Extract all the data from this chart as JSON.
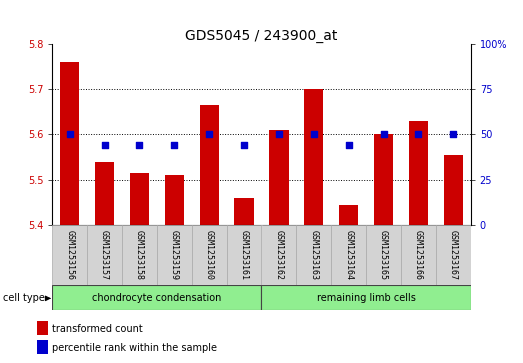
{
  "title": "GDS5045 / 243900_at",
  "categories": [
    "GSM1253156",
    "GSM1253157",
    "GSM1253158",
    "GSM1253159",
    "GSM1253160",
    "GSM1253161",
    "GSM1253162",
    "GSM1253163",
    "GSM1253164",
    "GSM1253165",
    "GSM1253166",
    "GSM1253167"
  ],
  "bar_values": [
    5.76,
    5.54,
    5.515,
    5.51,
    5.665,
    5.46,
    5.61,
    5.7,
    5.445,
    5.6,
    5.63,
    5.555
  ],
  "bar_base": 5.4,
  "percentile_values": [
    50,
    44,
    44,
    44,
    50,
    44,
    50,
    50,
    44,
    50,
    50,
    50
  ],
  "bar_color": "#cc0000",
  "dot_color": "#0000cc",
  "ylim_left": [
    5.4,
    5.8
  ],
  "ylim_right": [
    0,
    100
  ],
  "yticks_left": [
    5.4,
    5.5,
    5.6,
    5.7,
    5.8
  ],
  "yticks_right": [
    0,
    25,
    50,
    75,
    100
  ],
  "ytick_labels_right": [
    "0",
    "25",
    "50",
    "75",
    "100%"
  ],
  "group1_label": "chondrocyte condensation",
  "group2_label": "remaining limb cells",
  "group1_count": 6,
  "group2_count": 6,
  "cell_type_label": "cell type",
  "legend1": "transformed count",
  "legend2": "percentile rank within the sample",
  "background_color": "#ffffff",
  "plot_bg": "#ffffff",
  "tick_area_bg": "#d3d3d3",
  "group1_bg": "#90ee90",
  "group2_bg": "#90ee90",
  "title_fontsize": 10,
  "tick_fontsize": 7,
  "label_fontsize": 7.5,
  "cat_fontsize": 6
}
